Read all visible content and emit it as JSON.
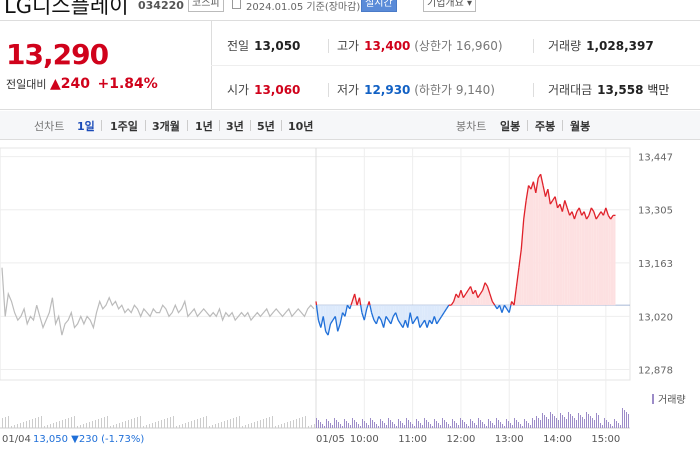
{
  "header": {
    "company": "LG디스플레이",
    "code": "034220",
    "market_badge": "코스피",
    "as_of": "2024.01.05  기준(장마감)",
    "live_badge": "실시간",
    "info_badge": "기업개요 ▾"
  },
  "price": {
    "current": "13,290",
    "change_label": "전일대비",
    "change_value": "▲240",
    "change_pct": "+1.84%"
  },
  "stats": {
    "prev_close_label": "전일",
    "prev_close": "13,050",
    "high_label": "고가",
    "high": "13,400",
    "upper_limit": "(상한가 16,960)",
    "volume_label": "거래량",
    "volume": "1,028,397",
    "open_label": "시가",
    "open": "13,060",
    "low_label": "저가",
    "low": "12,930",
    "lower_limit": "(하한가 9,140)",
    "value_label": "거래대금",
    "value": "13,558",
    "value_unit": "백만"
  },
  "tabs": {
    "line_label": "선차트",
    "periods": [
      "1일",
      "1주일",
      "3개월",
      "1년",
      "3년",
      "5년",
      "10년"
    ],
    "candle_label": "봉차트",
    "candles": [
      "일봉",
      "주봉",
      "월봉"
    ]
  },
  "colors": {
    "up": "#e0212a",
    "down": "#1f6fd8",
    "prev": "#bbbbbb",
    "up_fill": "#fde0e1",
    "down_fill": "#dce9fb",
    "volume": "#9c8cc8"
  },
  "chart_data": {
    "type": "line",
    "ylim": [
      12850,
      13470
    ],
    "yticks": [
      13447,
      13305,
      13163,
      13020,
      12878
    ],
    "ytick_labels": [
      "13,447",
      "13,305",
      "13,163",
      "13,020",
      "12,878"
    ],
    "baseline": 13050,
    "xtick_labels": [
      "10:00",
      "11:00",
      "12:00",
      "13:00",
      "14:00",
      "15:00"
    ],
    "xtick_hours": [
      10,
      11,
      12,
      13,
      14,
      15
    ],
    "session": [
      9,
      15.5
    ],
    "day_label": "01/05",
    "volume_label": "거래량",
    "prev_day": {
      "label": "01/04",
      "summary": "13,050 ▼230 (-1.73%)",
      "values": [
        13150,
        13020,
        13080,
        13060,
        13030,
        13010,
        13020,
        13040,
        13000,
        13020,
        13010,
        13050,
        13020,
        12990,
        13010,
        13030,
        13070,
        13000,
        13020,
        12970,
        13000,
        13010,
        13030,
        12990,
        13000,
        13020,
        13000,
        13020,
        13010,
        12990,
        13030,
        13060,
        13040,
        13050,
        13070,
        13050,
        13060,
        13040,
        13050,
        13030,
        13040,
        13030,
        13050,
        13040,
        13020,
        13040,
        13030,
        13020,
        13040,
        13030,
        13030,
        13050,
        13040,
        13020,
        13030,
        13050,
        13030,
        13040,
        13060,
        13020,
        13030,
        13040,
        13020,
        13030,
        13040,
        13030,
        13020,
        13030,
        13020,
        13040,
        13010,
        13030,
        13020,
        13030,
        13010,
        13020,
        13030,
        13020,
        13030,
        13010,
        13020,
        13030,
        13020,
        13030,
        13040,
        13020,
        13030,
        13040,
        13030,
        13020,
        13030,
        13040,
        13020,
        13030,
        13040,
        13030,
        13020,
        13040,
        13050,
        13040
      ]
    },
    "intraday": {
      "x": [
        9.0,
        9.05,
        9.1,
        9.15,
        9.2,
        9.25,
        9.3,
        9.35,
        9.4,
        9.45,
        9.5,
        9.55,
        9.6,
        9.65,
        9.7,
        9.75,
        9.8,
        9.85,
        9.9,
        9.95,
        10.0,
        10.05,
        10.1,
        10.15,
        10.2,
        10.25,
        10.3,
        10.35,
        10.4,
        10.45,
        10.5,
        10.55,
        10.6,
        10.65,
        10.7,
        10.75,
        10.8,
        10.85,
        10.9,
        10.95,
        11.0,
        11.05,
        11.1,
        11.15,
        11.2,
        11.25,
        11.3,
        11.35,
        11.4,
        11.45,
        11.5,
        11.55,
        11.6,
        11.65,
        11.7,
        11.75,
        11.8,
        11.85,
        11.9,
        11.95,
        12.0,
        12.05,
        12.1,
        12.15,
        12.2,
        12.25,
        12.3,
        12.35,
        12.4,
        12.45,
        12.5,
        12.55,
        12.6,
        12.65,
        12.7,
        12.75,
        12.8,
        12.85,
        12.9,
        12.95,
        13.0,
        13.05,
        13.1,
        13.15,
        13.2,
        13.25,
        13.3,
        13.35,
        13.4,
        13.45,
        13.5,
        13.55,
        13.6,
        13.65,
        13.7,
        13.75,
        13.8,
        13.85,
        13.9,
        13.95,
        14.0,
        14.05,
        14.1,
        14.15,
        14.2,
        14.25,
        14.3,
        14.35,
        14.4,
        14.45,
        14.5,
        14.55,
        14.6,
        14.65,
        14.7,
        14.75,
        14.8,
        14.85,
        14.9,
        14.95,
        15.0,
        15.05,
        15.1,
        15.15,
        15.2
      ],
      "y": [
        13060,
        13010,
        12990,
        13020,
        12980,
        12970,
        13000,
        13010,
        13020,
        12980,
        13000,
        13030,
        13020,
        13050,
        13040,
        13060,
        13080,
        13050,
        13070,
        13030,
        13010,
        13040,
        13060,
        13030,
        13010,
        13000,
        13020,
        13010,
        12990,
        13020,
        13010,
        13000,
        13020,
        13030,
        13010,
        13000,
        12990,
        13010,
        12990,
        13030,
        13000,
        13010,
        13020,
        12990,
        13000,
        13010,
        12990,
        13010,
        13000,
        13020,
        13000,
        13010,
        13020,
        13030,
        13040,
        13050,
        13050,
        13060,
        13080,
        13070,
        13090,
        13070,
        13080,
        13090,
        13100,
        13080,
        13090,
        13070,
        13080,
        13090,
        13110,
        13100,
        13080,
        13060,
        13050,
        13040,
        13050,
        13030,
        13050,
        13040,
        13030,
        13060,
        13050,
        13100,
        13150,
        13200,
        13280,
        13330,
        13370,
        13360,
        13380,
        13350,
        13390,
        13400,
        13370,
        13340,
        13360,
        13320,
        13330,
        13340,
        13310,
        13320,
        13300,
        13330,
        13310,
        13290,
        13300,
        13280,
        13300,
        13310,
        13290,
        13300,
        13280,
        13290,
        13310,
        13300,
        13280,
        13290,
        13300,
        13290,
        13310,
        13290,
        13280,
        13290,
        13290
      ]
    }
  }
}
